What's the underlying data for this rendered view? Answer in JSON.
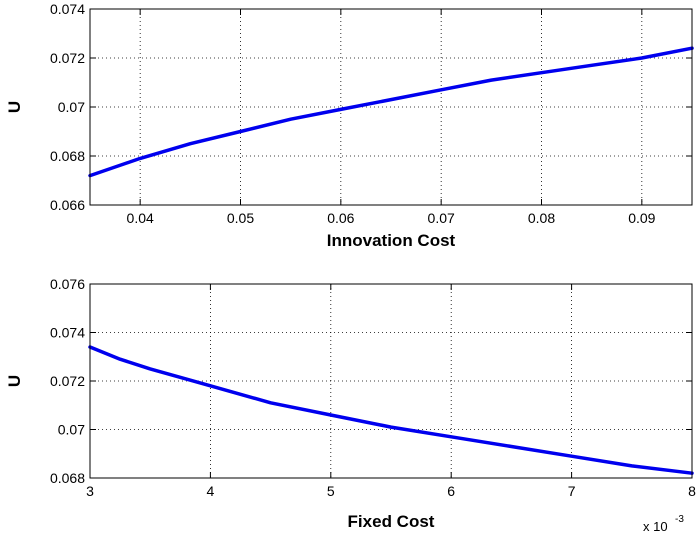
{
  "chart_data": [
    {
      "type": "line",
      "xlabel": "Innovation Cost",
      "ylabel": "U",
      "xlim": [
        0.035,
        0.095
      ],
      "ylim": [
        0.066,
        0.074
      ],
      "xticks": [
        0.04,
        0.05,
        0.06,
        0.07,
        0.08,
        0.09
      ],
      "xtick_labels": [
        "0.04",
        "0.05",
        "0.06",
        "0.07",
        "0.08",
        "0.09"
      ],
      "yticks": [
        0.066,
        0.068,
        0.07,
        0.072,
        0.074
      ],
      "ytick_labels": [
        "0.066",
        "0.068",
        "0.07",
        "0.072",
        "0.074"
      ],
      "x_multiplier": "",
      "grid": true,
      "series": [
        {
          "color": "#0000ee",
          "x": [
            0.035,
            0.04,
            0.045,
            0.05,
            0.055,
            0.06,
            0.065,
            0.07,
            0.075,
            0.08,
            0.085,
            0.09,
            0.095
          ],
          "y": [
            0.0672,
            0.0679,
            0.0685,
            0.069,
            0.0695,
            0.0699,
            0.0703,
            0.0707,
            0.0711,
            0.0714,
            0.0717,
            0.072,
            0.0724
          ]
        }
      ]
    },
    {
      "type": "line",
      "xlabel": "Fixed Cost",
      "ylabel": "U",
      "xlim": [
        3,
        8
      ],
      "ylim": [
        0.068,
        0.076
      ],
      "xticks": [
        3,
        4,
        5,
        6,
        7,
        8
      ],
      "xtick_labels": [
        "3",
        "4",
        "5",
        "6",
        "7",
        "8"
      ],
      "yticks": [
        0.068,
        0.07,
        0.072,
        0.074,
        0.076
      ],
      "ytick_labels": [
        "0.068",
        "0.07",
        "0.072",
        "0.074",
        "0.076"
      ],
      "x_multiplier": "x 10",
      "x_multiplier_exp": "-3",
      "grid": true,
      "series": [
        {
          "color": "#0000ee",
          "x": [
            3.0,
            3.25,
            3.5,
            4.0,
            4.5,
            5.0,
            5.5,
            6.0,
            6.5,
            7.0,
            7.5,
            8.0
          ],
          "y": [
            0.0734,
            0.0729,
            0.0725,
            0.0718,
            0.0711,
            0.0706,
            0.0701,
            0.0697,
            0.0693,
            0.0689,
            0.0685,
            0.0682
          ]
        }
      ]
    }
  ]
}
